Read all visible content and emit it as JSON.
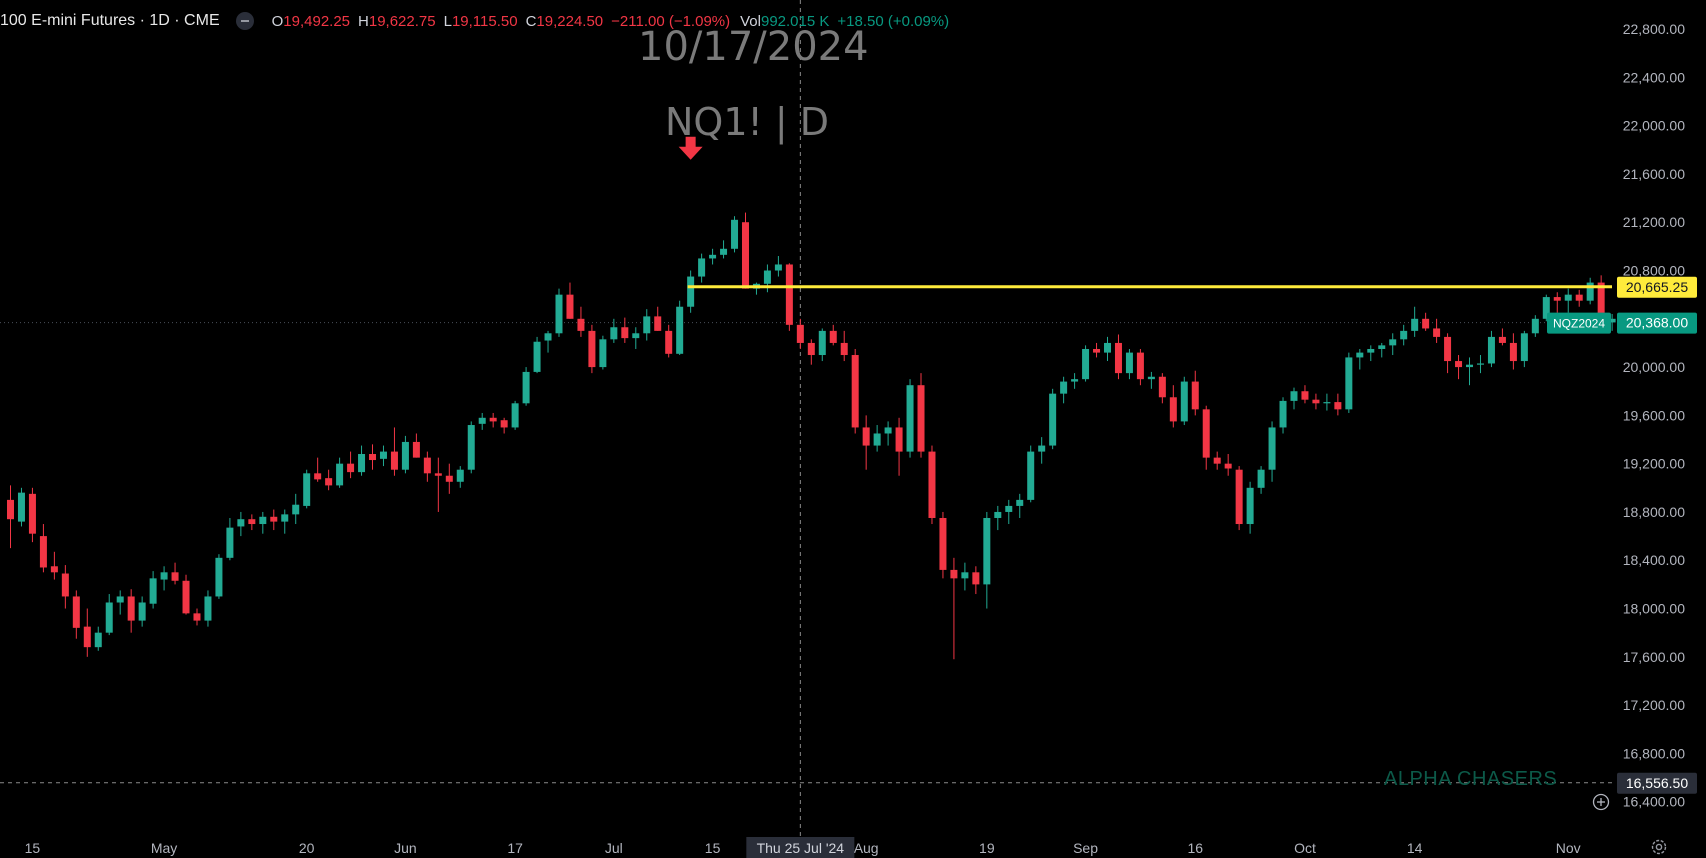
{
  "header": {
    "symbol": "100 E-mini Futures · 1D · CME",
    "o_label": "O",
    "o_val": "19,492.25",
    "h_label": "H",
    "h_val": "19,622.75",
    "l_label": "L",
    "l_val": "19,115.50",
    "c_label": "C",
    "c_val": "19,224.50",
    "change": "−211.00 (−1.09%)",
    "vol_label": "Vol",
    "vol_val": "992.015 K",
    "vol_change": "+18.50 (+0.09%)"
  },
  "watermark": {
    "date": "10/17/2024",
    "symbol": "NQ1! | D"
  },
  "brand": "ALPHA CHASERS",
  "colors": {
    "up": "#22ab94",
    "down": "#f23645",
    "resistance": "#ffeb3b",
    "price_tag": "#089981"
  },
  "chart_data": {
    "type": "candlestick",
    "y_range": [
      16240,
      22900
    ],
    "y_ticks": [
      {
        "v": 16400,
        "label": "16,400.00"
      },
      {
        "v": 16800,
        "label": "16,800.00"
      },
      {
        "v": 17200,
        "label": "17,200.00"
      },
      {
        "v": 17600,
        "label": "17,600.00"
      },
      {
        "v": 18000,
        "label": "18,000.00"
      },
      {
        "v": 18400,
        "label": "18,400.00"
      },
      {
        "v": 18800,
        "label": "18,800.00"
      },
      {
        "v": 19200,
        "label": "19,200.00"
      },
      {
        "v": 19600,
        "label": "19,600.00"
      },
      {
        "v": 20000,
        "label": "20,000.00"
      },
      {
        "v": 20400,
        "label": "20,400.00"
      },
      {
        "v": 20800,
        "label": "20,800.00"
      },
      {
        "v": 21200,
        "label": "21,200.00"
      },
      {
        "v": 21600,
        "label": "21,600.00"
      },
      {
        "v": 22000,
        "label": "22,000.00"
      },
      {
        "v": 22400,
        "label": "22,400.00"
      },
      {
        "v": 22800,
        "label": "22,800.00"
      }
    ],
    "x_ticks": [
      {
        "i": 2,
        "label": "15"
      },
      {
        "i": 14,
        "label": "May"
      },
      {
        "i": 27,
        "label": "20"
      },
      {
        "i": 36,
        "label": "Jun"
      },
      {
        "i": 46,
        "label": "17"
      },
      {
        "i": 55,
        "label": "Jul"
      },
      {
        "i": 64,
        "label": "15"
      },
      {
        "i": 78,
        "label": "Aug"
      },
      {
        "i": 89,
        "label": "19"
      },
      {
        "i": 98,
        "label": "Sep"
      },
      {
        "i": 108,
        "label": "16"
      },
      {
        "i": 118,
        "label": "Oct"
      },
      {
        "i": 128,
        "label": "14"
      },
      {
        "i": 142,
        "label": "Nov"
      }
    ],
    "crosshair": {
      "i": 72,
      "label": "Thu 25 Jul '24"
    },
    "arrow_at": {
      "i": 62,
      "value": 21800
    },
    "resistance": {
      "value": 20665.25,
      "label": "20,665.25",
      "from_i": 62
    },
    "current_price": {
      "value": 20368.0,
      "label": "20,368.00",
      "tag": "NQZ2024"
    },
    "level": {
      "value": 16556.5,
      "label": "16,556.50"
    },
    "candles": [
      [
        18900,
        19020,
        18500,
        18740
      ],
      [
        18720,
        19000,
        18680,
        18960
      ],
      [
        18950,
        19000,
        18550,
        18620
      ],
      [
        18600,
        18700,
        18300,
        18340
      ],
      [
        18350,
        18470,
        18240,
        18300
      ],
      [
        18290,
        18360,
        18000,
        18100
      ],
      [
        18100,
        18150,
        17750,
        17840
      ],
      [
        17850,
        18000,
        17600,
        17680
      ],
      [
        17680,
        17850,
        17650,
        17800
      ],
      [
        17800,
        18120,
        17780,
        18050
      ],
      [
        18050,
        18150,
        17950,
        18100
      ],
      [
        18100,
        18160,
        17800,
        17900
      ],
      [
        17900,
        18100,
        17850,
        18050
      ],
      [
        18040,
        18310,
        18000,
        18250
      ],
      [
        18240,
        18350,
        18150,
        18300
      ],
      [
        18300,
        18380,
        18200,
        18230
      ],
      [
        18230,
        18280,
        17950,
        17960
      ],
      [
        17960,
        18000,
        17860,
        17900
      ],
      [
        17900,
        18150,
        17850,
        18100
      ],
      [
        18100,
        18450,
        18080,
        18420
      ],
      [
        18420,
        18750,
        18400,
        18670
      ],
      [
        18680,
        18800,
        18600,
        18740
      ],
      [
        18740,
        18780,
        18650,
        18700
      ],
      [
        18700,
        18800,
        18620,
        18760
      ],
      [
        18760,
        18820,
        18650,
        18720
      ],
      [
        18720,
        18820,
        18620,
        18780
      ],
      [
        18780,
        18950,
        18700,
        18860
      ],
      [
        18850,
        19150,
        18830,
        19120
      ],
      [
        19120,
        19250,
        19050,
        19070
      ],
      [
        19080,
        19150,
        18980,
        19020
      ],
      [
        19020,
        19250,
        19000,
        19200
      ],
      [
        19200,
        19300,
        19080,
        19130
      ],
      [
        19130,
        19350,
        19100,
        19280
      ],
      [
        19280,
        19360,
        19150,
        19230
      ],
      [
        19240,
        19350,
        19180,
        19300
      ],
      [
        19300,
        19500,
        19100,
        19150
      ],
      [
        19150,
        19430,
        19120,
        19380
      ],
      [
        19380,
        19450,
        19250,
        19250
      ],
      [
        19250,
        19300,
        19050,
        19120
      ],
      [
        19120,
        19250,
        18800,
        19100
      ],
      [
        19100,
        19200,
        18950,
        19050
      ],
      [
        19050,
        19180,
        19000,
        19150
      ],
      [
        19150,
        19550,
        19120,
        19520
      ],
      [
        19530,
        19620,
        19480,
        19580
      ],
      [
        19580,
        19620,
        19500,
        19550
      ],
      [
        19560,
        19580,
        19450,
        19500
      ],
      [
        19500,
        19720,
        19480,
        19700
      ],
      [
        19700,
        20000,
        19680,
        19960
      ],
      [
        19960,
        20250,
        19950,
        20210
      ],
      [
        20220,
        20300,
        20120,
        20280
      ],
      [
        20280,
        20650,
        20250,
        20600
      ],
      [
        20600,
        20700,
        20400,
        20400
      ],
      [
        20400,
        20500,
        20250,
        20300
      ],
      [
        20300,
        20350,
        19950,
        20000
      ],
      [
        20000,
        20260,
        19980,
        20230
      ],
      [
        20230,
        20400,
        20200,
        20330
      ],
      [
        20330,
        20410,
        20200,
        20240
      ],
      [
        20240,
        20330,
        20150,
        20280
      ],
      [
        20280,
        20480,
        20220,
        20420
      ],
      [
        20420,
        20500,
        20300,
        20300
      ],
      [
        20300,
        20350,
        20080,
        20110
      ],
      [
        20110,
        20550,
        20100,
        20500
      ],
      [
        20500,
        20800,
        20450,
        20750
      ],
      [
        20750,
        20940,
        20700,
        20900
      ],
      [
        20900,
        20980,
        20850,
        20930
      ],
      [
        20930,
        21050,
        20900,
        20980
      ],
      [
        20980,
        21250,
        20950,
        21220
      ],
      [
        21200,
        21280,
        20650,
        20650
      ],
      [
        20650,
        20700,
        20600,
        20690
      ],
      [
        20690,
        20850,
        20620,
        20800
      ],
      [
        20800,
        20920,
        20750,
        20850
      ],
      [
        20850,
        20860,
        20300,
        20350
      ],
      [
        20350,
        20400,
        20150,
        20200
      ],
      [
        20200,
        20230,
        20020,
        20100
      ],
      [
        20100,
        20320,
        20050,
        20300
      ],
      [
        20300,
        20350,
        20180,
        20200
      ],
      [
        20200,
        20300,
        20050,
        20100
      ],
      [
        20100,
        20150,
        19450,
        19500
      ],
      [
        19500,
        19600,
        19150,
        19350
      ],
      [
        19350,
        19520,
        19300,
        19450
      ],
      [
        19450,
        19550,
        19350,
        19500
      ],
      [
        19500,
        19580,
        19100,
        19300
      ],
      [
        19300,
        19900,
        19250,
        19850
      ],
      [
        19850,
        19950,
        19250,
        19300
      ],
      [
        19300,
        19350,
        18700,
        18750
      ],
      [
        18750,
        18800,
        18250,
        18320
      ],
      [
        18320,
        18420,
        17580,
        18250
      ],
      [
        18250,
        18380,
        18150,
        18300
      ],
      [
        18300,
        18350,
        18120,
        18200
      ],
      [
        18200,
        18800,
        18000,
        18750
      ],
      [
        18750,
        18850,
        18650,
        18800
      ],
      [
        18800,
        18900,
        18700,
        18850
      ],
      [
        18850,
        18950,
        18750,
        18900
      ],
      [
        18900,
        19350,
        18880,
        19300
      ],
      [
        19300,
        19420,
        19200,
        19350
      ],
      [
        19350,
        19820,
        19320,
        19780
      ],
      [
        19780,
        19920,
        19700,
        19880
      ],
      [
        19880,
        19950,
        19820,
        19900
      ],
      [
        19900,
        20180,
        19880,
        20150
      ],
      [
        20150,
        20200,
        20080,
        20120
      ],
      [
        20120,
        20250,
        20050,
        20200
      ],
      [
        20200,
        20270,
        19900,
        19950
      ],
      [
        19950,
        20150,
        19900,
        20120
      ],
      [
        20120,
        20150,
        19850,
        19900
      ],
      [
        19900,
        19960,
        19820,
        19920
      ],
      [
        19920,
        19950,
        19700,
        19750
      ],
      [
        19750,
        19850,
        19500,
        19550
      ],
      [
        19550,
        19920,
        19520,
        19880
      ],
      [
        19880,
        19970,
        19600,
        19650
      ],
      [
        19650,
        19680,
        19150,
        19250
      ],
      [
        19250,
        19300,
        19150,
        19200
      ],
      [
        19200,
        19280,
        19100,
        19160
      ],
      [
        19150,
        19180,
        18650,
        18700
      ],
      [
        18700,
        19050,
        18620,
        19000
      ],
      [
        19000,
        19180,
        18950,
        19150
      ],
      [
        19150,
        19550,
        19050,
        19500
      ],
      [
        19500,
        19750,
        19450,
        19720
      ],
      [
        19720,
        19830,
        19650,
        19800
      ],
      [
        19800,
        19850,
        19700,
        19730
      ],
      [
        19730,
        19780,
        19650,
        19700
      ],
      [
        19700,
        19780,
        19640,
        19710
      ],
      [
        19710,
        19780,
        19600,
        19650
      ],
      [
        19650,
        20120,
        19620,
        20080
      ],
      [
        20080,
        20150,
        19980,
        20120
      ],
      [
        20120,
        20180,
        20050,
        20150
      ],
      [
        20150,
        20200,
        20080,
        20180
      ],
      [
        20180,
        20280,
        20100,
        20230
      ],
      [
        20230,
        20350,
        20180,
        20300
      ],
      [
        20300,
        20500,
        20250,
        20400
      ],
      [
        20400,
        20450,
        20300,
        20320
      ],
      [
        20320,
        20400,
        20200,
        20250
      ],
      [
        20250,
        20280,
        19950,
        20050
      ],
      [
        20050,
        20100,
        19900,
        20000
      ],
      [
        20000,
        20080,
        19850,
        20020
      ],
      [
        20020,
        20100,
        19950,
        20030
      ],
      [
        20030,
        20300,
        20000,
        20250
      ],
      [
        20250,
        20320,
        20180,
        20200
      ],
      [
        20200,
        20280,
        19980,
        20050
      ],
      [
        20050,
        20300,
        20000,
        20280
      ],
      [
        20280,
        20430,
        20250,
        20400
      ],
      [
        20400,
        20600,
        20380,
        20580
      ],
      [
        20580,
        20620,
        20450,
        20550
      ],
      [
        20550,
        20650,
        20450,
        20600
      ],
      [
        20600,
        20640,
        20500,
        20550
      ],
      [
        20550,
        20740,
        20520,
        20700
      ],
      [
        20700,
        20760,
        20320,
        20370
      ],
      [
        20370,
        20440,
        20300,
        20400
      ],
      [
        20400,
        20420,
        20300,
        20368
      ]
    ]
  }
}
